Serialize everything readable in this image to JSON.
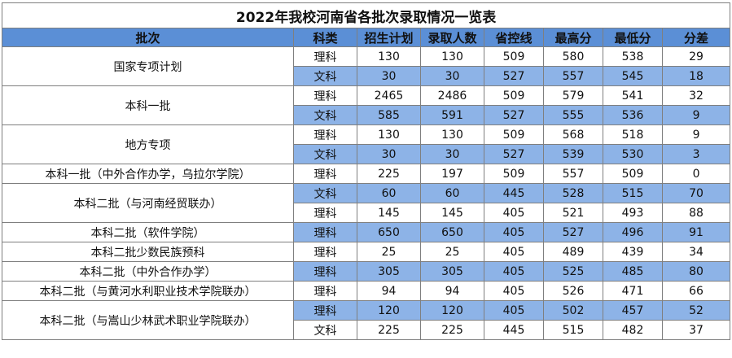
{
  "title": "2022年我校河南省各批次录取情况一览表",
  "headers": [
    "批次",
    "科类",
    "招生计划",
    "录取人数",
    "省控线",
    "最高分",
    "最低分",
    "分差"
  ],
  "groups": [
    {
      "batch": "国家专项计划",
      "rows": [
        {
          "subject": "理科",
          "plan": "130",
          "admitted": "130",
          "control": "509",
          "max": "580",
          "min": "538",
          "diff": "29",
          "hl": false
        },
        {
          "subject": "文科",
          "plan": "30",
          "admitted": "30",
          "control": "527",
          "max": "557",
          "min": "545",
          "diff": "18",
          "hl": true
        }
      ]
    },
    {
      "batch": "本科一批",
      "rows": [
        {
          "subject": "理科",
          "plan": "2465",
          "admitted": "2486",
          "control": "509",
          "max": "579",
          "min": "541",
          "diff": "32",
          "hl": false
        },
        {
          "subject": "文科",
          "plan": "585",
          "admitted": "591",
          "control": "527",
          "max": "555",
          "min": "536",
          "diff": "9",
          "hl": true
        }
      ]
    },
    {
      "batch": "地方专项",
      "rows": [
        {
          "subject": "理科",
          "plan": "130",
          "admitted": "130",
          "control": "509",
          "max": "568",
          "min": "518",
          "diff": "9",
          "hl": false
        },
        {
          "subject": "文科",
          "plan": "30",
          "admitted": "30",
          "control": "527",
          "max": "539",
          "min": "530",
          "diff": "3",
          "hl": true
        }
      ]
    },
    {
      "batch": "本科一批（中外合作办学，乌拉尔学院）",
      "rows": [
        {
          "subject": "理科",
          "plan": "225",
          "admitted": "197",
          "control": "509",
          "max": "557",
          "min": "509",
          "diff": "0",
          "hl": false
        }
      ]
    },
    {
      "batch": "本科二批（与河南经贸联办）",
      "rows": [
        {
          "subject": "文科",
          "plan": "60",
          "admitted": "60",
          "control": "445",
          "max": "528",
          "min": "515",
          "diff": "70",
          "hl": true
        },
        {
          "subject": "理科",
          "plan": "145",
          "admitted": "145",
          "control": "405",
          "max": "521",
          "min": "493",
          "diff": "88",
          "hl": false
        }
      ]
    },
    {
      "batch": "本科二批（软件学院）",
      "rows": [
        {
          "subject": "理科",
          "plan": "650",
          "admitted": "650",
          "control": "405",
          "max": "527",
          "min": "496",
          "diff": "91",
          "hl": true
        }
      ]
    },
    {
      "batch": "本科二批少数民族预科",
      "rows": [
        {
          "subject": "理科",
          "plan": "25",
          "admitted": "25",
          "control": "405",
          "max": "489",
          "min": "439",
          "diff": "34",
          "hl": false
        }
      ]
    },
    {
      "batch": "本科二批（中外合作办学）",
      "rows": [
        {
          "subject": "理科",
          "plan": "305",
          "admitted": "305",
          "control": "405",
          "max": "525",
          "min": "485",
          "diff": "80",
          "hl": true
        }
      ]
    },
    {
      "batch": "本科二批（与黄河水利职业技术学院联办）",
      "rows": [
        {
          "subject": "理科",
          "plan": "94",
          "admitted": "94",
          "control": "405",
          "max": "526",
          "min": "471",
          "diff": "66",
          "hl": false
        }
      ]
    },
    {
      "batch": "本科二批（与嵩山少林武术职业学院联办）",
      "rows": [
        {
          "subject": "理科",
          "plan": "120",
          "admitted": "120",
          "control": "405",
          "max": "502",
          "min": "457",
          "diff": "52",
          "hl": true
        },
        {
          "subject": "文科",
          "plan": "225",
          "admitted": "225",
          "control": "445",
          "max": "515",
          "min": "482",
          "diff": "37",
          "hl": false
        }
      ]
    }
  ],
  "colors": {
    "header": "#5b8fd6",
    "highlight": "#8db3e7",
    "border": "#7f7f7f"
  }
}
